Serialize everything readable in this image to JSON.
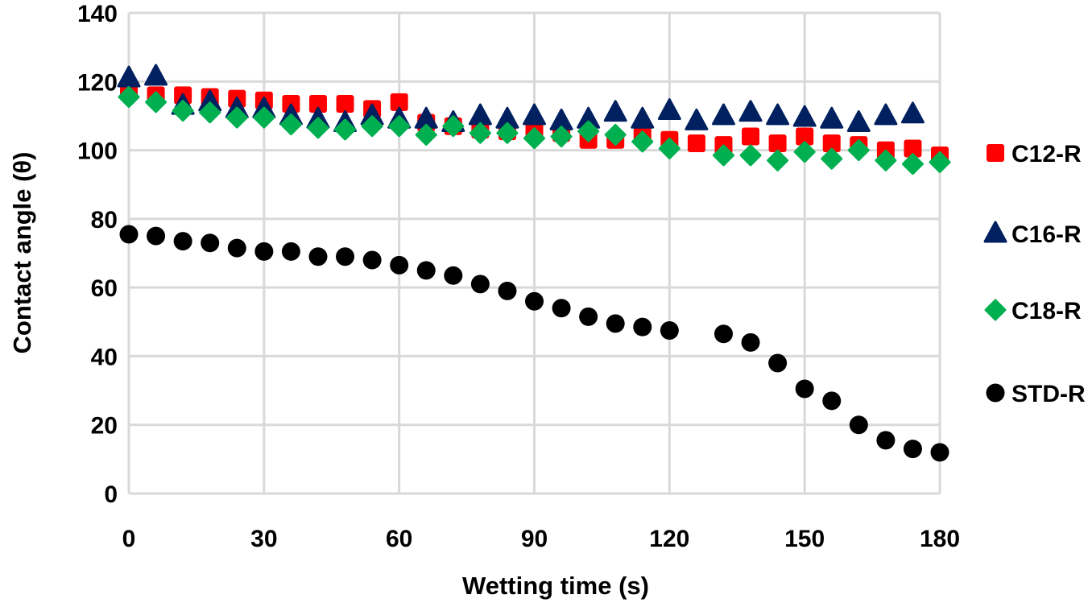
{
  "chart_data": {
    "type": "scatter",
    "title": "",
    "xlabel": "Wetting time (s)",
    "ylabel": "Contact angle (θ)",
    "xlim": [
      0,
      180
    ],
    "ylim": [
      0,
      140
    ],
    "xticks": [
      0,
      30,
      60,
      90,
      120,
      150,
      180
    ],
    "yticks": [
      0,
      20,
      40,
      60,
      80,
      100,
      120,
      140
    ],
    "grid": true,
    "legend_position": "right",
    "x": [
      0,
      6,
      12,
      18,
      24,
      30,
      36,
      42,
      48,
      54,
      60,
      66,
      72,
      78,
      84,
      90,
      96,
      102,
      108,
      114,
      120,
      126,
      132,
      138,
      144,
      150,
      156,
      162,
      168,
      174,
      180
    ],
    "series": [
      {
        "name": "C12-R",
        "marker": "square",
        "color": "#FF0000",
        "values": [
          118,
          116,
          116,
          115.5,
          115,
          114.5,
          113.5,
          113.5,
          113.5,
          112,
          114,
          108,
          107,
          106,
          105.5,
          106,
          105,
          103,
          103,
          104,
          103,
          102,
          101.5,
          104,
          102,
          104,
          102,
          101.5,
          100,
          100.5,
          98.5
        ]
      },
      {
        "name": "C16-R",
        "marker": "triangle",
        "color": "#002060",
        "values": [
          121,
          121.5,
          113,
          114,
          112,
          112,
          110,
          109,
          108,
          110,
          109,
          109,
          108,
          110,
          109,
          110,
          108.5,
          109,
          111,
          109,
          111.5,
          108.5,
          110,
          111,
          110,
          109.5,
          109,
          108,
          110,
          110.5,
          null
        ]
      },
      {
        "name": "C18-R",
        "marker": "diamond",
        "color": "#00B050",
        "values": [
          115.5,
          114,
          111.5,
          111,
          109.5,
          109.5,
          107.5,
          106.5,
          106,
          107,
          107,
          104.5,
          107,
          105,
          105,
          103.5,
          104,
          105.5,
          104.5,
          102.5,
          100.5,
          null,
          98.5,
          98.5,
          97,
          99.5,
          97.5,
          100,
          97,
          96,
          96.5
        ]
      },
      {
        "name": "STD-R",
        "marker": "circle",
        "color": "#000000",
        "values": [
          75.5,
          75,
          73.5,
          73,
          71.5,
          70.5,
          70.5,
          69,
          69,
          68,
          66.5,
          65,
          63.5,
          61,
          59,
          56,
          54,
          51.5,
          49.5,
          48.5,
          47.5,
          null,
          46.5,
          44,
          38,
          30.5,
          27,
          20,
          15.5,
          13,
          12
        ]
      }
    ]
  }
}
